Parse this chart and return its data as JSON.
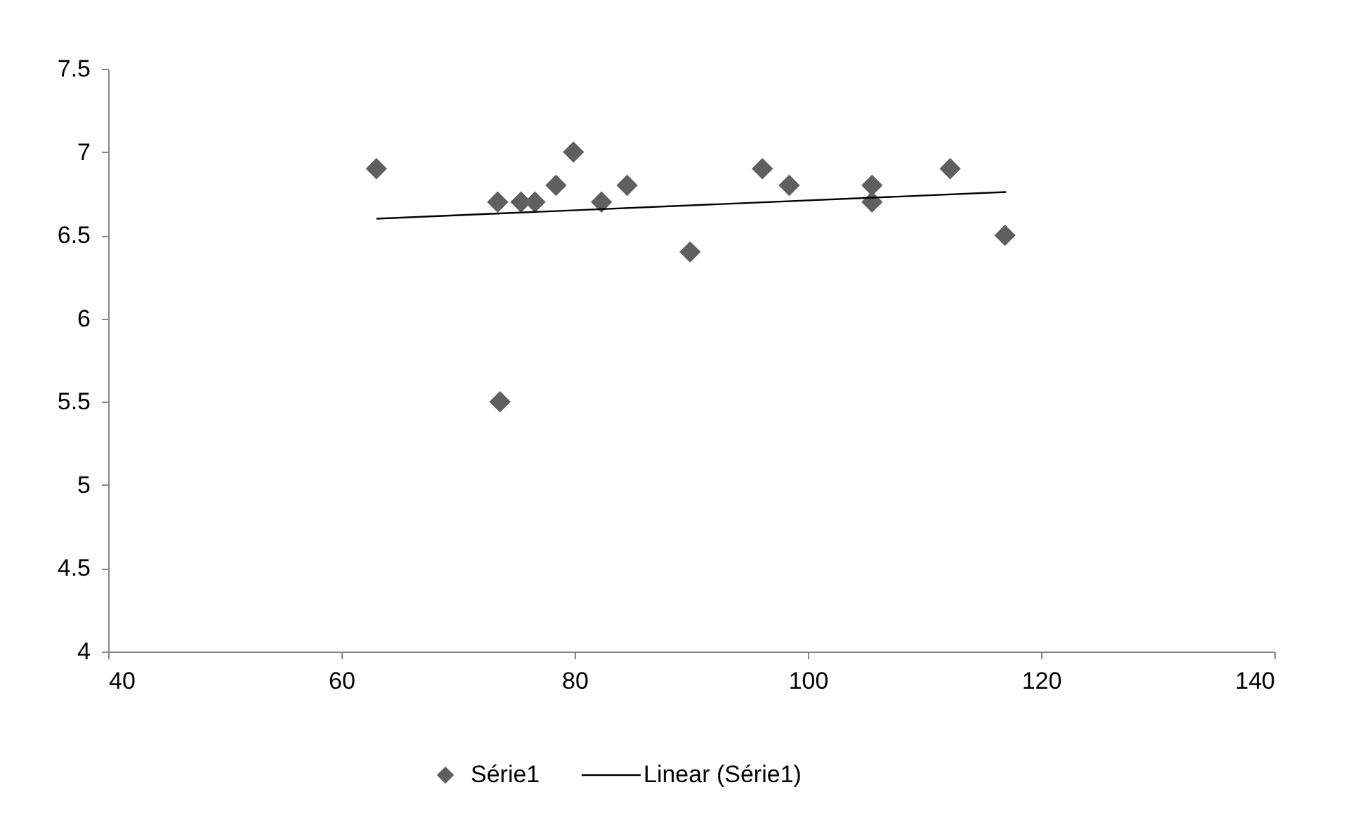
{
  "chart_data": {
    "type": "scatter",
    "xlim": [
      40,
      140
    ],
    "xticks": [
      40,
      60,
      80,
      100,
      120,
      140
    ],
    "ylim": [
      4,
      7.5
    ],
    "yticks": [
      4,
      4.5,
      5,
      5.5,
      6,
      6.5,
      7,
      7.5
    ],
    "grid": false,
    "legend": "bottom",
    "series": [
      {
        "name": "Série1",
        "marker": "diamond",
        "color": "#5f5f5f",
        "x": [
          63,
          73.4,
          73.6,
          75.4,
          76.6,
          78.4,
          79.9,
          82.3,
          84.5,
          89.9,
          96.1,
          98.4,
          105.5,
          105.5,
          112.2,
          116.9
        ],
        "values": [
          6.9,
          6.7,
          5.5,
          6.7,
          6.7,
          6.8,
          7.0,
          6.7,
          6.8,
          6.4,
          6.9,
          6.8,
          6.8,
          6.7,
          6.9,
          6.5
        ]
      },
      {
        "name": "Linear (Série1)",
        "type": "line",
        "line_style": "solid",
        "color": "#000000",
        "x": [
          63,
          117
        ],
        "values": [
          6.6,
          6.76
        ]
      }
    ]
  }
}
